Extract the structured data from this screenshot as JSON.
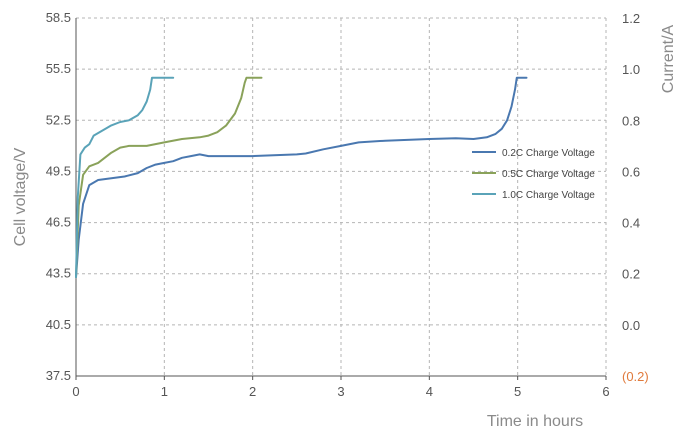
{
  "chart_data": {
    "type": "line",
    "title": "",
    "xlabel": "Time in hours",
    "ylabel": "Cell voltage/V",
    "y2label": "Current/A",
    "xlim": [
      0,
      6
    ],
    "ylim": [
      37.5,
      58.5
    ],
    "x_ticks": [
      "0",
      "1",
      "2",
      "3",
      "4",
      "5",
      "6"
    ],
    "y_ticks": [
      "37.5",
      "40.5",
      "43.5",
      "46.5",
      "49.5",
      "52.5",
      "55.5",
      "58.5"
    ],
    "y2_ticks": [
      {
        "label": "(0.2)",
        "color": "#e07a3c"
      },
      {
        "label": "0.0",
        "color": "#555555"
      },
      {
        "label": "0.2",
        "color": "#555555"
      },
      {
        "label": "0.4",
        "color": "#555555"
      },
      {
        "label": "0.6",
        "color": "#555555"
      },
      {
        "label": "0.8",
        "color": "#555555"
      },
      {
        "label": "1.0",
        "color": "#555555"
      },
      {
        "label": "1.2",
        "color": "#555555"
      }
    ],
    "grid": true,
    "legend_position": "right-middle",
    "series": [
      {
        "name": "0.2C Charge Voltage",
        "color": "#4a78b0",
        "x": [
          0,
          0.03,
          0.08,
          0.15,
          0.25,
          0.4,
          0.55,
          0.7,
          0.8,
          0.9,
          1.0,
          1.1,
          1.2,
          1.3,
          1.4,
          1.5,
          2.0,
          2.5,
          2.6,
          2.8,
          3.0,
          3.2,
          3.5,
          4.0,
          4.3,
          4.5,
          4.65,
          4.75,
          4.82,
          4.88,
          4.93,
          4.97,
          4.99,
          5.0,
          5.05,
          5.1
        ],
        "y": [
          43.3,
          45.5,
          47.6,
          48.7,
          49.0,
          49.1,
          49.2,
          49.4,
          49.7,
          49.9,
          50.0,
          50.1,
          50.3,
          50.4,
          50.5,
          50.4,
          50.4,
          50.5,
          50.55,
          50.8,
          51.0,
          51.2,
          51.3,
          51.4,
          51.45,
          51.4,
          51.5,
          51.7,
          52.0,
          52.5,
          53.3,
          54.3,
          55.0,
          55.0,
          55.0,
          55.0
        ]
      },
      {
        "name": "0.5C Charge Voltage",
        "color": "#8aa25a",
        "x": [
          0,
          0.03,
          0.08,
          0.15,
          0.25,
          0.4,
          0.5,
          0.6,
          0.7,
          0.8,
          1.0,
          1.2,
          1.4,
          1.5,
          1.6,
          1.7,
          1.8,
          1.87,
          1.91,
          1.93,
          2.0,
          2.1
        ],
        "y": [
          43.3,
          47.5,
          49.3,
          49.8,
          50.0,
          50.6,
          50.9,
          51.0,
          51.0,
          51.0,
          51.2,
          51.4,
          51.5,
          51.6,
          51.8,
          52.2,
          52.9,
          53.8,
          54.7,
          55.0,
          55.0,
          55.0
        ]
      },
      {
        "name": "1.0C Charge Voltage",
        "color": "#5aa3b8",
        "x": [
          0,
          0.02,
          0.05,
          0.1,
          0.15,
          0.2,
          0.3,
          0.4,
          0.5,
          0.6,
          0.7,
          0.75,
          0.8,
          0.84,
          0.86,
          0.9,
          1.0,
          1.1
        ],
        "y": [
          43.3,
          48.0,
          50.5,
          50.9,
          51.1,
          51.6,
          51.9,
          52.2,
          52.4,
          52.5,
          52.8,
          53.1,
          53.6,
          54.3,
          55.0,
          55.0,
          55.0,
          55.0
        ]
      }
    ]
  }
}
